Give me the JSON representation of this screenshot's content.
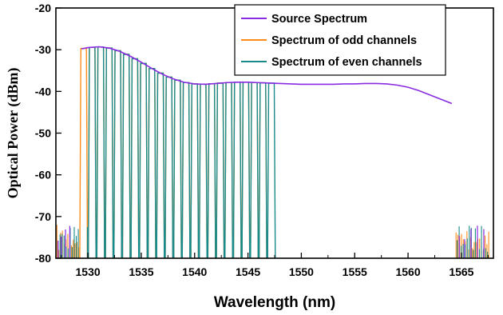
{
  "chart_data": {
    "type": "line",
    "title": "",
    "xlabel": "Wavelength (nm)",
    "ylabel": "Optical Power (dBm)",
    "xlim": [
      1527,
      1568
    ],
    "ylim": [
      -80,
      -20
    ],
    "x_ticks": [
      "1530",
      "1535",
      "1540",
      "1545",
      "1550",
      "1555",
      "1560",
      "1565"
    ],
    "y_ticks": [
      "-20",
      "-30",
      "-40",
      "-50",
      "-60",
      "-70",
      "-80"
    ],
    "grid": false,
    "legend_position": "top-right",
    "noise_floor_dBm": -80,
    "channel_spacing_nm": 0.8,
    "series": [
      {
        "name": "Source Spectrum",
        "color": "#8a2be2",
        "envelope": {
          "x": [
            1529.4,
            1530.0,
            1531.0,
            1532.0,
            1533.0,
            1534.0,
            1535.0,
            1536.0,
            1537.0,
            1538.0,
            1539.0,
            1540.0,
            1541.0,
            1542.0,
            1543.0,
            1544.0,
            1545.0,
            1546.0,
            1547.0,
            1548.0,
            1549.0,
            1550.0,
            1551.0,
            1552.0,
            1553.0,
            1554.0,
            1555.0,
            1556.0,
            1557.0,
            1558.0,
            1559.0,
            1560.0,
            1561.0,
            1562.0,
            1563.0,
            1564.1
          ],
          "y": [
            -29.8,
            -29.5,
            -29.3,
            -29.6,
            -30.4,
            -31.6,
            -33.0,
            -34.5,
            -35.9,
            -37.0,
            -37.8,
            -38.2,
            -38.3,
            -38.1,
            -37.9,
            -37.8,
            -37.8,
            -37.9,
            -38.0,
            -38.1,
            -38.2,
            -38.3,
            -38.3,
            -38.3,
            -38.3,
            -38.2,
            -38.2,
            -38.1,
            -38.1,
            -38.2,
            -38.5,
            -39.0,
            -39.8,
            -40.8,
            -41.8,
            -42.9
          ]
        }
      },
      {
        "name": "Spectrum of odd channels",
        "color": "#ff8c1a",
        "first_channel_nm": 1529.6,
        "channel_count": 22
      },
      {
        "name": "Spectrum of even channels",
        "color": "#1a8a8a",
        "first_channel_nm": 1530.4,
        "channel_count": 22
      }
    ]
  }
}
